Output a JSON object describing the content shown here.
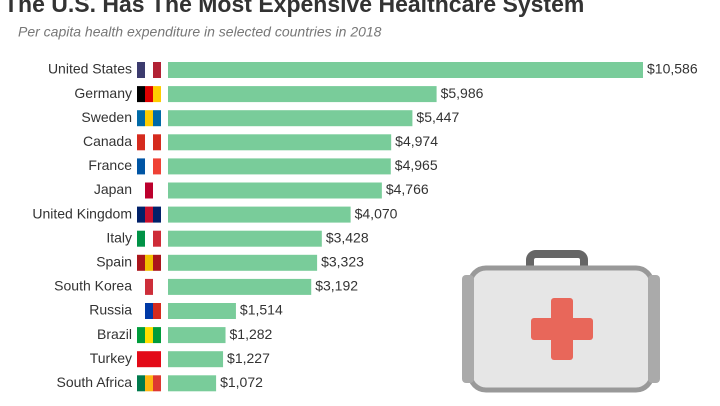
{
  "chart_data": {
    "type": "bar",
    "orientation": "horizontal",
    "title": "The U.S. Has The Most Expensive Healthcare System",
    "subtitle": "Per capita health expenditure in selected countries in 2018",
    "categories": [
      "United States",
      "Germany",
      "Sweden",
      "Canada",
      "France",
      "Japan",
      "United Kingdom",
      "Italy",
      "Spain",
      "South Korea",
      "Russia",
      "Brazil",
      "Turkey",
      "South Africa"
    ],
    "values": [
      10586,
      5986,
      5447,
      4974,
      4965,
      4766,
      4070,
      3428,
      3323,
      3192,
      1514,
      1282,
      1227,
      1072
    ],
    "value_labels": [
      "$10,586",
      "$5,986",
      "$5,447",
      "$4,974",
      "$4,965",
      "$4,766",
      "$4,070",
      "$3,428",
      "$3,323",
      "$3,192",
      "$1,514",
      "$1,282",
      "$1,227",
      "$1,072"
    ],
    "color": "#79cc9a"
  }
}
